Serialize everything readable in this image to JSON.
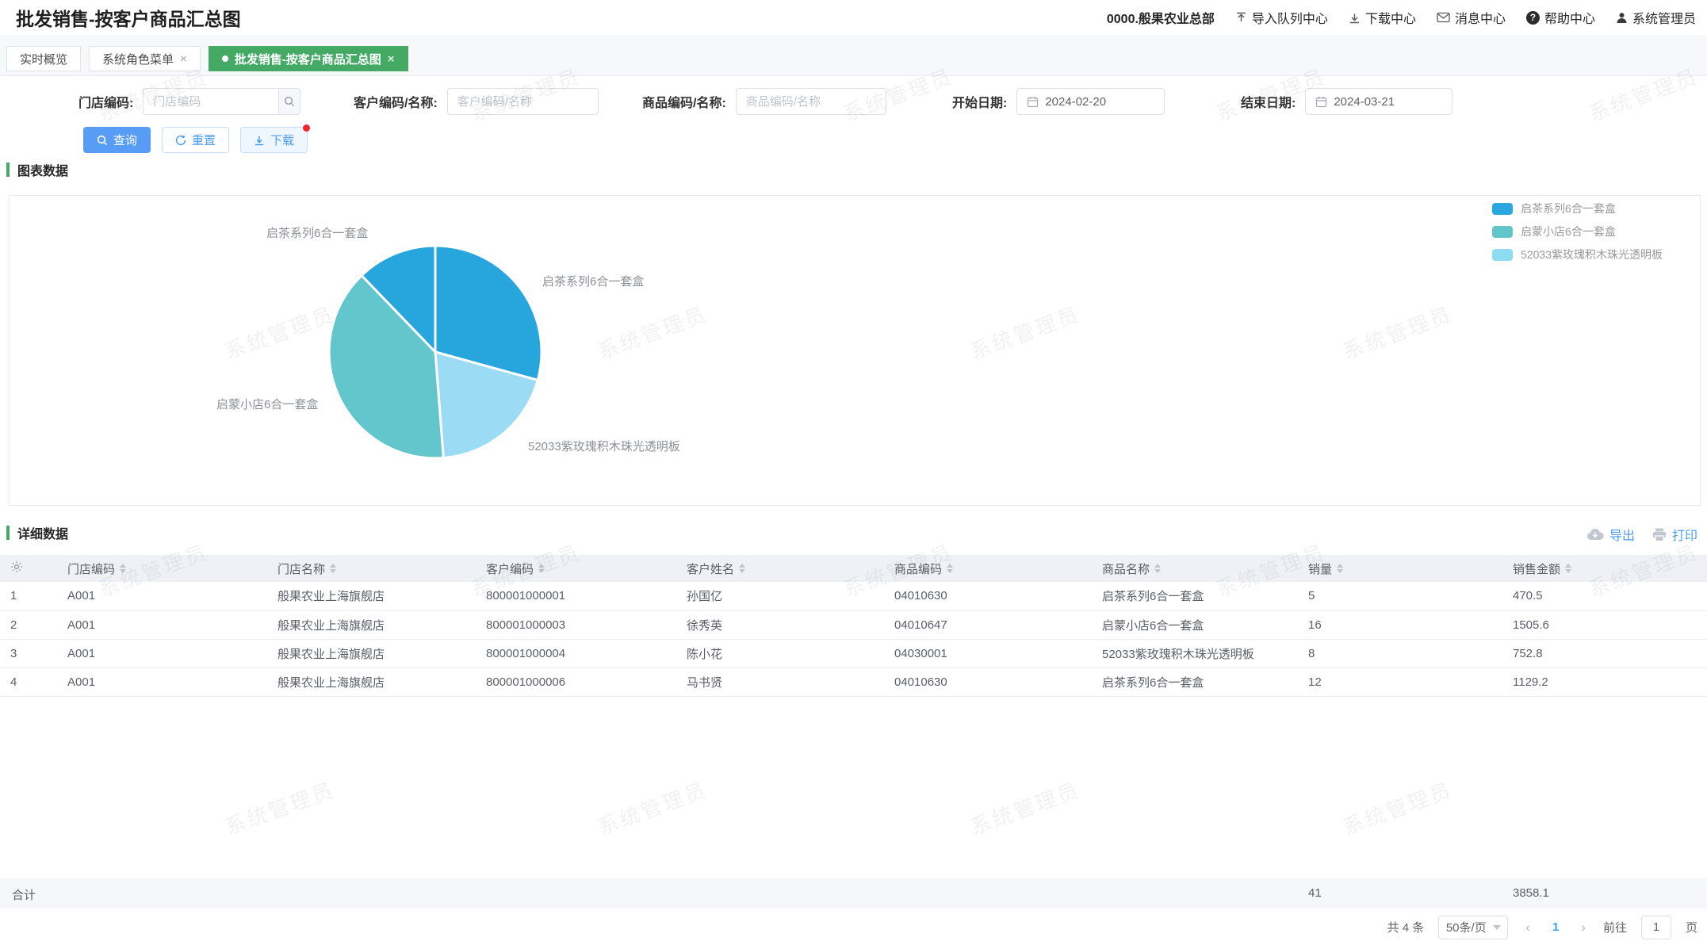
{
  "header": {
    "title": "批发销售-按客户商品汇总图",
    "org": "0000.般果农业总部",
    "nav": {
      "import_center": "导入队列中心",
      "download_center": "下载中心",
      "message_center": "消息中心",
      "help_center": "帮助中心",
      "user": "系统管理员"
    }
  },
  "tabs": [
    {
      "label": "实时概览",
      "active": false,
      "closable": false
    },
    {
      "label": "系统角色菜单",
      "active": false,
      "closable": true
    },
    {
      "label": "批发销售-按客户商品汇总图",
      "active": true,
      "closable": true
    }
  ],
  "filters": {
    "store_code": {
      "label": "门店编码:",
      "placeholder": "门店编码"
    },
    "customer": {
      "label": "客户编码/名称:",
      "placeholder": "客户编码/名称"
    },
    "product": {
      "label": "商品编码/名称:",
      "placeholder": "商品编码/名称"
    },
    "start_date": {
      "label": "开始日期:",
      "value": "2024-02-20"
    },
    "end_date": {
      "label": "结束日期:",
      "value": "2024-03-21"
    }
  },
  "actions": {
    "search": "查询",
    "reset": "重置",
    "download": "下载"
  },
  "sections": {
    "chart": "图表数据",
    "detail": "详细数据"
  },
  "toolbar": {
    "export": "导出",
    "print": "打印"
  },
  "chart_data": {
    "type": "pie",
    "title": "",
    "legend_position": "top-right",
    "direction": "clockwise",
    "start_angle": "top",
    "total": 3858.1,
    "legend": [
      {
        "label": "启茶系列6合一套盒",
        "color": "#29a7de"
      },
      {
        "label": "启蒙小店6合一套盒",
        "color": "#62c5cb"
      },
      {
        "label": "52033紫玫瑰积木珠光透明板",
        "color": "#8edcf2"
      }
    ],
    "slices": [
      {
        "label": "启茶系列6合一套盒",
        "value": 1129.2,
        "color": "#27a5dd"
      },
      {
        "label": "52033紫玫瑰积木珠光透明板",
        "value": 752.8,
        "color": "#9bdbf3"
      },
      {
        "label": "启蒙小店6合一套盒",
        "value": 1505.6,
        "color": "#63c6cc"
      },
      {
        "label": "启茶系列6合一套盒",
        "value": 470.5,
        "color": "#27a5dd"
      }
    ]
  },
  "table": {
    "headers": [
      "门店编码",
      "门店名称",
      "客户编码",
      "客户姓名",
      "商品编码",
      "商品名称",
      "销量",
      "销售金额"
    ],
    "rows": [
      [
        "1",
        "A001",
        "般果农业上海旗舰店",
        "800001000001",
        "孙国亿",
        "04010630",
        "启茶系列6合一套盒",
        "5",
        "470.5"
      ],
      [
        "2",
        "A001",
        "般果农业上海旗舰店",
        "800001000003",
        "徐秀英",
        "04010647",
        "启蒙小店6合一套盒",
        "16",
        "1505.6"
      ],
      [
        "3",
        "A001",
        "般果农业上海旗舰店",
        "800001000004",
        "陈小花",
        "04030001",
        "52033紫玫瑰积木珠光透明板",
        "8",
        "752.8"
      ],
      [
        "4",
        "A001",
        "般果农业上海旗舰店",
        "800001000006",
        "马书贤",
        "04010630",
        "启茶系列6合一套盒",
        "12",
        "1129.2"
      ]
    ],
    "summary": {
      "label": "合计",
      "qty": "41",
      "amount": "3858.1"
    }
  },
  "pagination": {
    "total_text": "共 4 条",
    "page_size": "50条/页",
    "current_page": "1",
    "goto_label": "前往",
    "goto_value": "1",
    "page_unit": "页"
  },
  "watermark": {
    "text": "系统管理员"
  },
  "colors": {
    "accent_green": "#43a964",
    "primary_blue": "#579df6",
    "link_blue": "#409eff",
    "badge_red": "#f5222d"
  }
}
